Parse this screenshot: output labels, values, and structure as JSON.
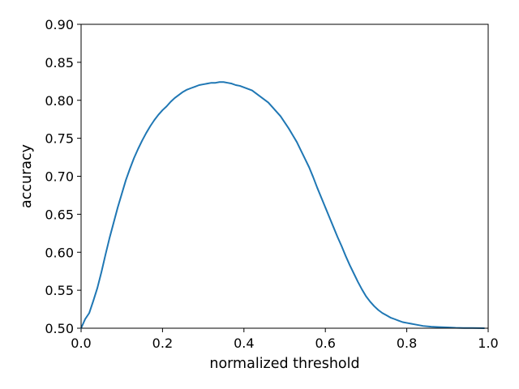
{
  "chart_data": {
    "type": "line",
    "title": "",
    "xlabel": "normalized threshold",
    "ylabel": "accuracy",
    "xlim": [
      0.0,
      1.0
    ],
    "ylim": [
      0.5,
      0.9
    ],
    "x_ticks": [
      "0.0",
      "0.2",
      "0.4",
      "0.6",
      "0.8",
      "1.0"
    ],
    "y_ticks": [
      "0.50",
      "0.55",
      "0.60",
      "0.65",
      "0.70",
      "0.75",
      "0.80",
      "0.85",
      "0.90"
    ],
    "grid": false,
    "legend": "none",
    "series": [
      {
        "color": "#1f77b4",
        "x": [
          0.0,
          0.01,
          0.02,
          0.03,
          0.04,
          0.05,
          0.06,
          0.07,
          0.08,
          0.09,
          0.1,
          0.11,
          0.12,
          0.13,
          0.14,
          0.15,
          0.16,
          0.17,
          0.18,
          0.19,
          0.2,
          0.21,
          0.22,
          0.23,
          0.24,
          0.25,
          0.26,
          0.27,
          0.28,
          0.29,
          0.3,
          0.31,
          0.32,
          0.33,
          0.34,
          0.35,
          0.36,
          0.37,
          0.38,
          0.39,
          0.4,
          0.41,
          0.42,
          0.43,
          0.44,
          0.45,
          0.46,
          0.47,
          0.48,
          0.49,
          0.5,
          0.51,
          0.52,
          0.53,
          0.54,
          0.55,
          0.56,
          0.57,
          0.58,
          0.59,
          0.6,
          0.61,
          0.62,
          0.63,
          0.64,
          0.65,
          0.66,
          0.67,
          0.68,
          0.69,
          0.7,
          0.71,
          0.72,
          0.73,
          0.74,
          0.75,
          0.76,
          0.77,
          0.78,
          0.79,
          0.8,
          0.82,
          0.84,
          0.86,
          0.88,
          0.9,
          0.92,
          0.94,
          0.96,
          0.98,
          0.99
        ],
        "y": [
          0.5,
          0.512,
          0.52,
          0.536,
          0.553,
          0.574,
          0.597,
          0.619,
          0.639,
          0.659,
          0.677,
          0.695,
          0.71,
          0.724,
          0.736,
          0.747,
          0.757,
          0.766,
          0.774,
          0.781,
          0.787,
          0.792,
          0.798,
          0.803,
          0.807,
          0.811,
          0.814,
          0.816,
          0.818,
          0.82,
          0.821,
          0.822,
          0.823,
          0.823,
          0.824,
          0.824,
          0.823,
          0.822,
          0.82,
          0.819,
          0.817,
          0.815,
          0.813,
          0.809,
          0.805,
          0.801,
          0.797,
          0.791,
          0.785,
          0.779,
          0.771,
          0.763,
          0.754,
          0.745,
          0.734,
          0.723,
          0.712,
          0.699,
          0.685,
          0.672,
          0.659,
          0.646,
          0.633,
          0.62,
          0.608,
          0.595,
          0.583,
          0.572,
          0.561,
          0.551,
          0.542,
          0.535,
          0.529,
          0.524,
          0.52,
          0.517,
          0.514,
          0.512,
          0.51,
          0.508,
          0.507,
          0.505,
          0.503,
          0.502,
          0.5015,
          0.501,
          0.5005,
          0.5003,
          0.5002,
          0.5001,
          0.5
        ]
      }
    ]
  }
}
